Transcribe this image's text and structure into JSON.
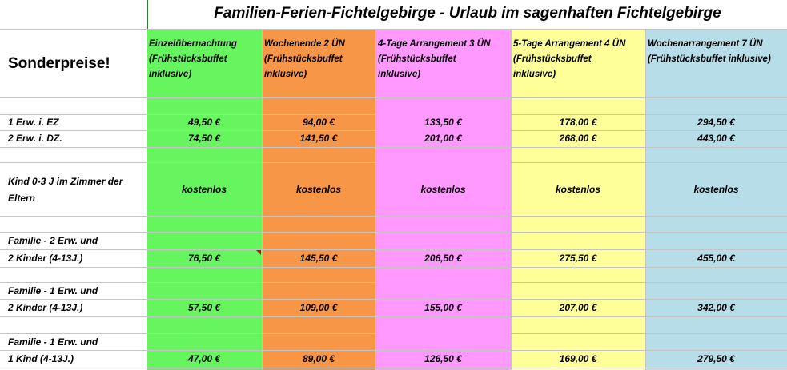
{
  "title": "Familien-Ferien-Fichtelgebirge - Urlaub im sagenhaften Fichtelgebirge",
  "corner": "Sonderpreise!",
  "columns": [
    {
      "lines": [
        "Einzelübernachtung",
        "(Frühstücksbuffet",
        "inklusive)"
      ]
    },
    {
      "lines": [
        "Wochenende 2 ÜN",
        "(Frühstücksbuffet",
        "inklusive)"
      ]
    },
    {
      "lines": [
        "4-Tage Arrangement 3 ÜN",
        "(Frühstücksbuffet",
        "inklusive)"
      ]
    },
    {
      "lines": [
        "5-Tage Arrangement 4 ÜN",
        "(Frühstücksbuffet",
        "inklusive)"
      ]
    },
    {
      "lines": [
        "Wochenarrangement 7 ÜN",
        "(Frühstücksbuffet inklusive)"
      ]
    }
  ],
  "rows": [
    {
      "label": [
        "1 Erw. i. EZ"
      ],
      "prices": [
        "49,50 €",
        "94,00 €",
        "133,50 €",
        "178,00 €",
        "294,50 €"
      ]
    },
    {
      "label": [
        "2 Erw. i. DZ."
      ],
      "prices": [
        "74,50 €",
        "141,50 €",
        "201,00 €",
        "268,00 €",
        "443,00 €"
      ]
    },
    {
      "label": [
        "Kind 0-3 J im Zimmer der",
        "Eltern"
      ],
      "prices": [
        "kostenlos",
        "kostenlos",
        "kostenlos",
        "kostenlos",
        "kostenlos"
      ]
    },
    {
      "label": [
        "Familie - 2 Erw. und",
        "2 Kinder (4-13J.)"
      ],
      "prices": [
        "76,50 €",
        "145,50 €",
        "206,50 €",
        "275,50 €",
        "455,00 €"
      ]
    },
    {
      "label": [
        "Familie - 1 Erw. und",
        "2 Kinder (4-13J.)"
      ],
      "prices": [
        "57,50 €",
        "109,00 €",
        "155,00 €",
        "207,00 €",
        "342,00 €"
      ]
    },
    {
      "label": [
        "Familie - 1 Erw. und",
        "1 Kind (4-13J.)"
      ],
      "prices": [
        "47,00 €",
        "89,00 €",
        "126,50 €",
        "169,00 €",
        "279,50 €"
      ]
    }
  ]
}
